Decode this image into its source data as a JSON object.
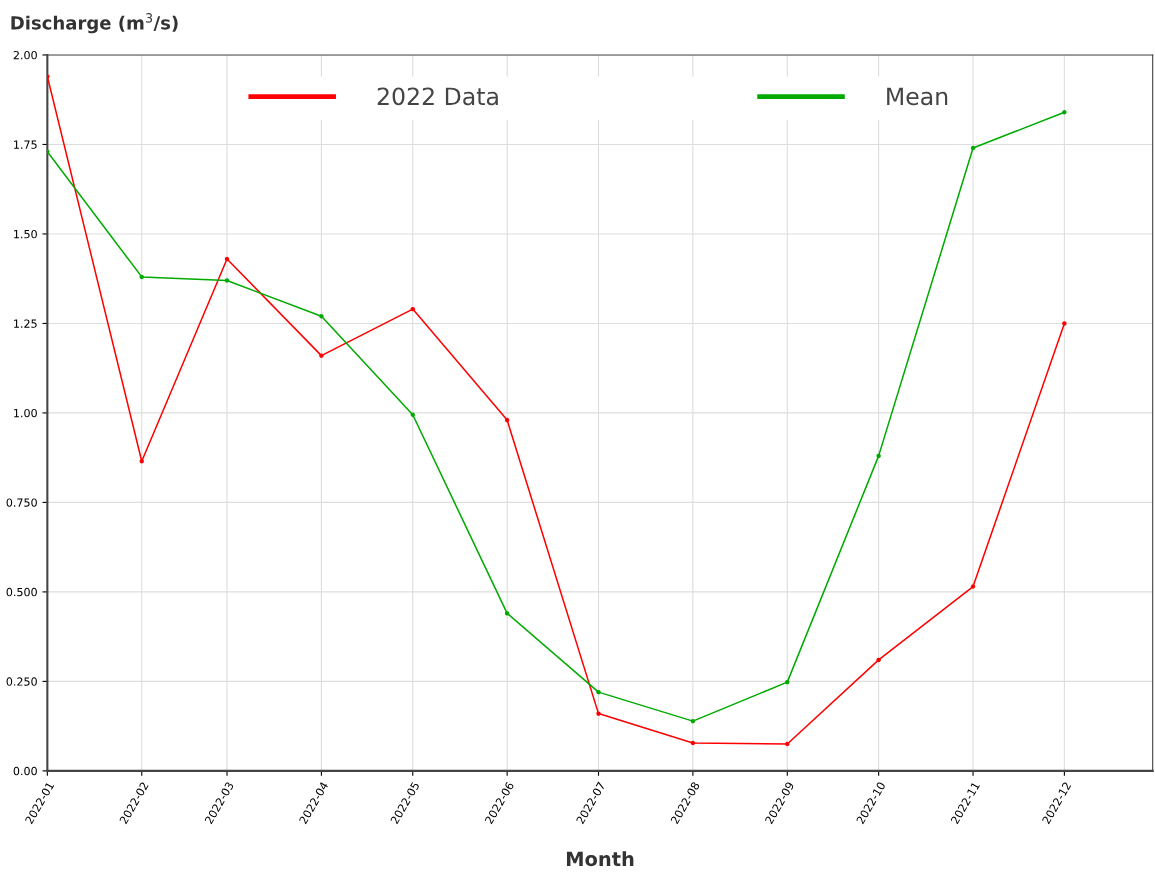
{
  "chart_data": {
    "type": "line",
    "xlabel": "Month",
    "ylabel": "Discharge (m$^{3}$/s)",
    "x": [
      "2022-01",
      "2022-02",
      "2022-03",
      "2022-04",
      "2022-05",
      "2022-06",
      "2022-07",
      "2022-08",
      "2022-09",
      "2022-10",
      "2022-11",
      "2022-12"
    ],
    "series": [
      {
        "name": "2022 Data",
        "color": "#ff0000",
        "values": [
          1.94,
          0.865,
          1.43,
          1.16,
          1.29,
          0.98,
          0.16,
          0.078,
          0.075,
          0.31,
          0.515,
          1.25
        ]
      },
      {
        "name": "Mean",
        "color": "#00aa00",
        "values": [
          1.73,
          1.38,
          1.37,
          1.27,
          0.995,
          0.44,
          0.22,
          0.139,
          0.248,
          0.88,
          1.74,
          1.84
        ]
      }
    ],
    "xlim": [
      "2022-01-01",
      "2022-12-30"
    ],
    "xticks": [
      {
        "value": "2022-01",
        "label": "2022-01"
      },
      {
        "value": "2022-02",
        "label": "2022-02"
      },
      {
        "value": "2022-03",
        "label": "2022-03"
      },
      {
        "value": "2022-04",
        "label": "2022-04"
      },
      {
        "value": "2022-05",
        "label": "2022-05"
      },
      {
        "value": "2022-06",
        "label": "2022-06"
      },
      {
        "value": "2022-07",
        "label": "2022-07"
      },
      {
        "value": "2022-08",
        "label": "2022-08"
      },
      {
        "value": "2022-09",
        "label": "2022-09"
      },
      {
        "value": "2022-10",
        "label": "2022-10"
      },
      {
        "value": "2022-11",
        "label": "2022-11"
      },
      {
        "value": "2022-12",
        "label": "2022-12"
      }
    ],
    "ylim": [
      0,
      2
    ],
    "yticks": [
      {
        "value": 0,
        "label": "0.00"
      },
      {
        "value": 0.25,
        "label": "0.250"
      },
      {
        "value": 0.5,
        "label": "0.500"
      },
      {
        "value": 0.75,
        "label": "0.750"
      },
      {
        "value": 1,
        "label": "1.00"
      },
      {
        "value": 1.25,
        "label": "1.25"
      },
      {
        "value": 1.5,
        "label": "1.50"
      },
      {
        "value": 1.75,
        "label": "1.75"
      },
      {
        "value": 2,
        "label": "2.00"
      }
    ],
    "grid": true,
    "legend": "top",
    "marker": "circle",
    "line_style": "solid"
  }
}
